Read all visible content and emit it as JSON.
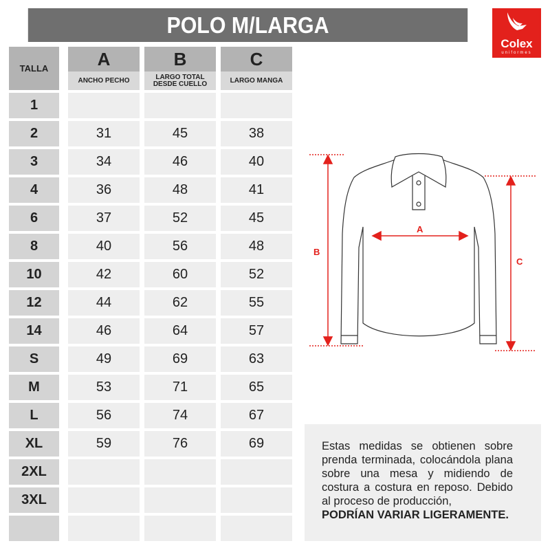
{
  "title": "POLO M/LARGA",
  "logo": {
    "name": "Colex",
    "sub": "uniformes"
  },
  "table": {
    "size_header": "TALLA",
    "columns": [
      {
        "letter": "A",
        "label": "ANCHO PECHO"
      },
      {
        "letter": "B",
        "label": "LARGO TOTAL DESDE CUELLO"
      },
      {
        "letter": "C",
        "label": "LARGO MANGA"
      }
    ],
    "rows": [
      {
        "size": "1",
        "values": [
          "",
          "",
          ""
        ]
      },
      {
        "size": "2",
        "values": [
          "31",
          "45",
          "38"
        ]
      },
      {
        "size": "3",
        "values": [
          "34",
          "46",
          "40"
        ]
      },
      {
        "size": "4",
        "values": [
          "36",
          "48",
          "41"
        ]
      },
      {
        "size": "6",
        "values": [
          "37",
          "52",
          "45"
        ]
      },
      {
        "size": "8",
        "values": [
          "40",
          "56",
          "48"
        ]
      },
      {
        "size": "10",
        "values": [
          "42",
          "60",
          "52"
        ]
      },
      {
        "size": "12",
        "values": [
          "44",
          "62",
          "55"
        ]
      },
      {
        "size": "14",
        "values": [
          "46",
          "64",
          "57"
        ]
      },
      {
        "size": "S",
        "values": [
          "49",
          "69",
          "63"
        ]
      },
      {
        "size": "M",
        "values": [
          "53",
          "71",
          "65"
        ]
      },
      {
        "size": "L",
        "values": [
          "56",
          "74",
          "67"
        ]
      },
      {
        "size": "XL",
        "values": [
          "59",
          "76",
          "69"
        ]
      },
      {
        "size": "2XL",
        "values": [
          "",
          "",
          ""
        ]
      },
      {
        "size": "3XL",
        "values": [
          "",
          "",
          ""
        ]
      },
      {
        "size": "",
        "values": [
          "",
          "",
          ""
        ]
      }
    ]
  },
  "diagram": {
    "labels": {
      "a": "A",
      "b": "B",
      "c": "C"
    },
    "accent": "#e3211c"
  },
  "note": {
    "text": "Estas medidas se obtienen sobre prenda terminada, colocándola plana sobre una mesa y midiendo de costura a costura en reposo. Debido al proceso de producción,",
    "bold": "PODRÍAN VARIAR LIGERAMENTE."
  }
}
